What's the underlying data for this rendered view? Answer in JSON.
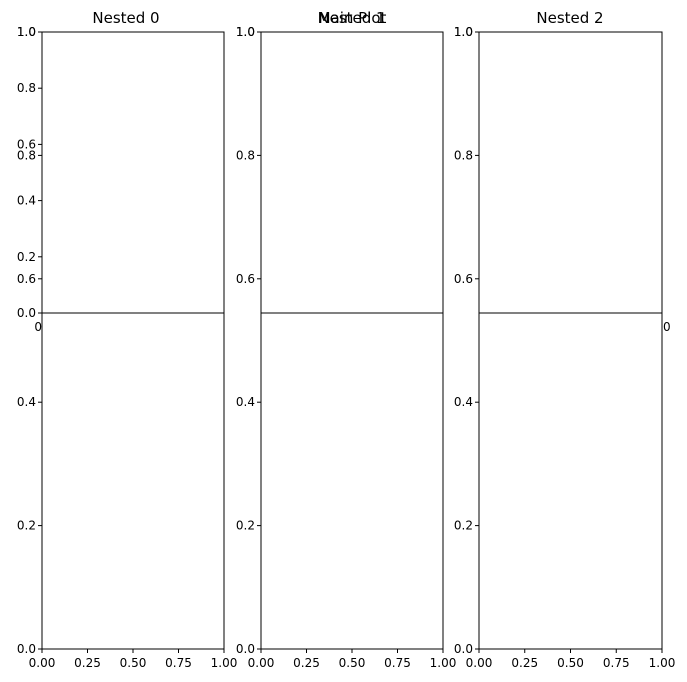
{
  "chart_data": [
    {
      "type": "line",
      "title": "Nested 0",
      "series": [],
      "xlim": [
        0,
        1
      ],
      "ylim": [
        0,
        1
      ],
      "xticks": [
        "0.0",
        "0.25",
        "0.5",
        "0.75",
        "1.0"
      ],
      "yticks": [
        "0.0",
        "0.2",
        "0.4",
        "0.6",
        "0.8",
        "1.0"
      ],
      "xtick_labels_visible": [
        "0"
      ],
      "grid": false
    },
    {
      "type": "line",
      "title": "Nested 1",
      "series": [],
      "xlim": [
        0,
        1
      ],
      "ylim": [
        0,
        1
      ],
      "xticks": [],
      "yticks": [
        "0.0",
        "0.2",
        "0.4",
        "0.6",
        "0.8",
        "1.0"
      ],
      "grid": false
    },
    {
      "type": "line",
      "title": "Nested 2",
      "series": [],
      "xlim": [
        0,
        1
      ],
      "ylim": [
        0,
        1
      ],
      "xticks": [],
      "yticks": [
        "0.0",
        "0.2",
        "0.4",
        "0.6",
        "0.8",
        "1.0"
      ],
      "xtick_labels_visible": [
        "0"
      ],
      "grid": false
    },
    {
      "type": "line",
      "title": "Main Plot",
      "series": [],
      "xlim": [
        0,
        1
      ],
      "ylim": [
        0,
        1
      ],
      "xticks": [
        "0.00",
        "0.25",
        "0.50",
        "0.75",
        "1.00"
      ],
      "yticks": [
        "0.0",
        "0.2",
        "0.4",
        "0.6",
        "0.8",
        "1.0"
      ],
      "grid": false
    }
  ]
}
